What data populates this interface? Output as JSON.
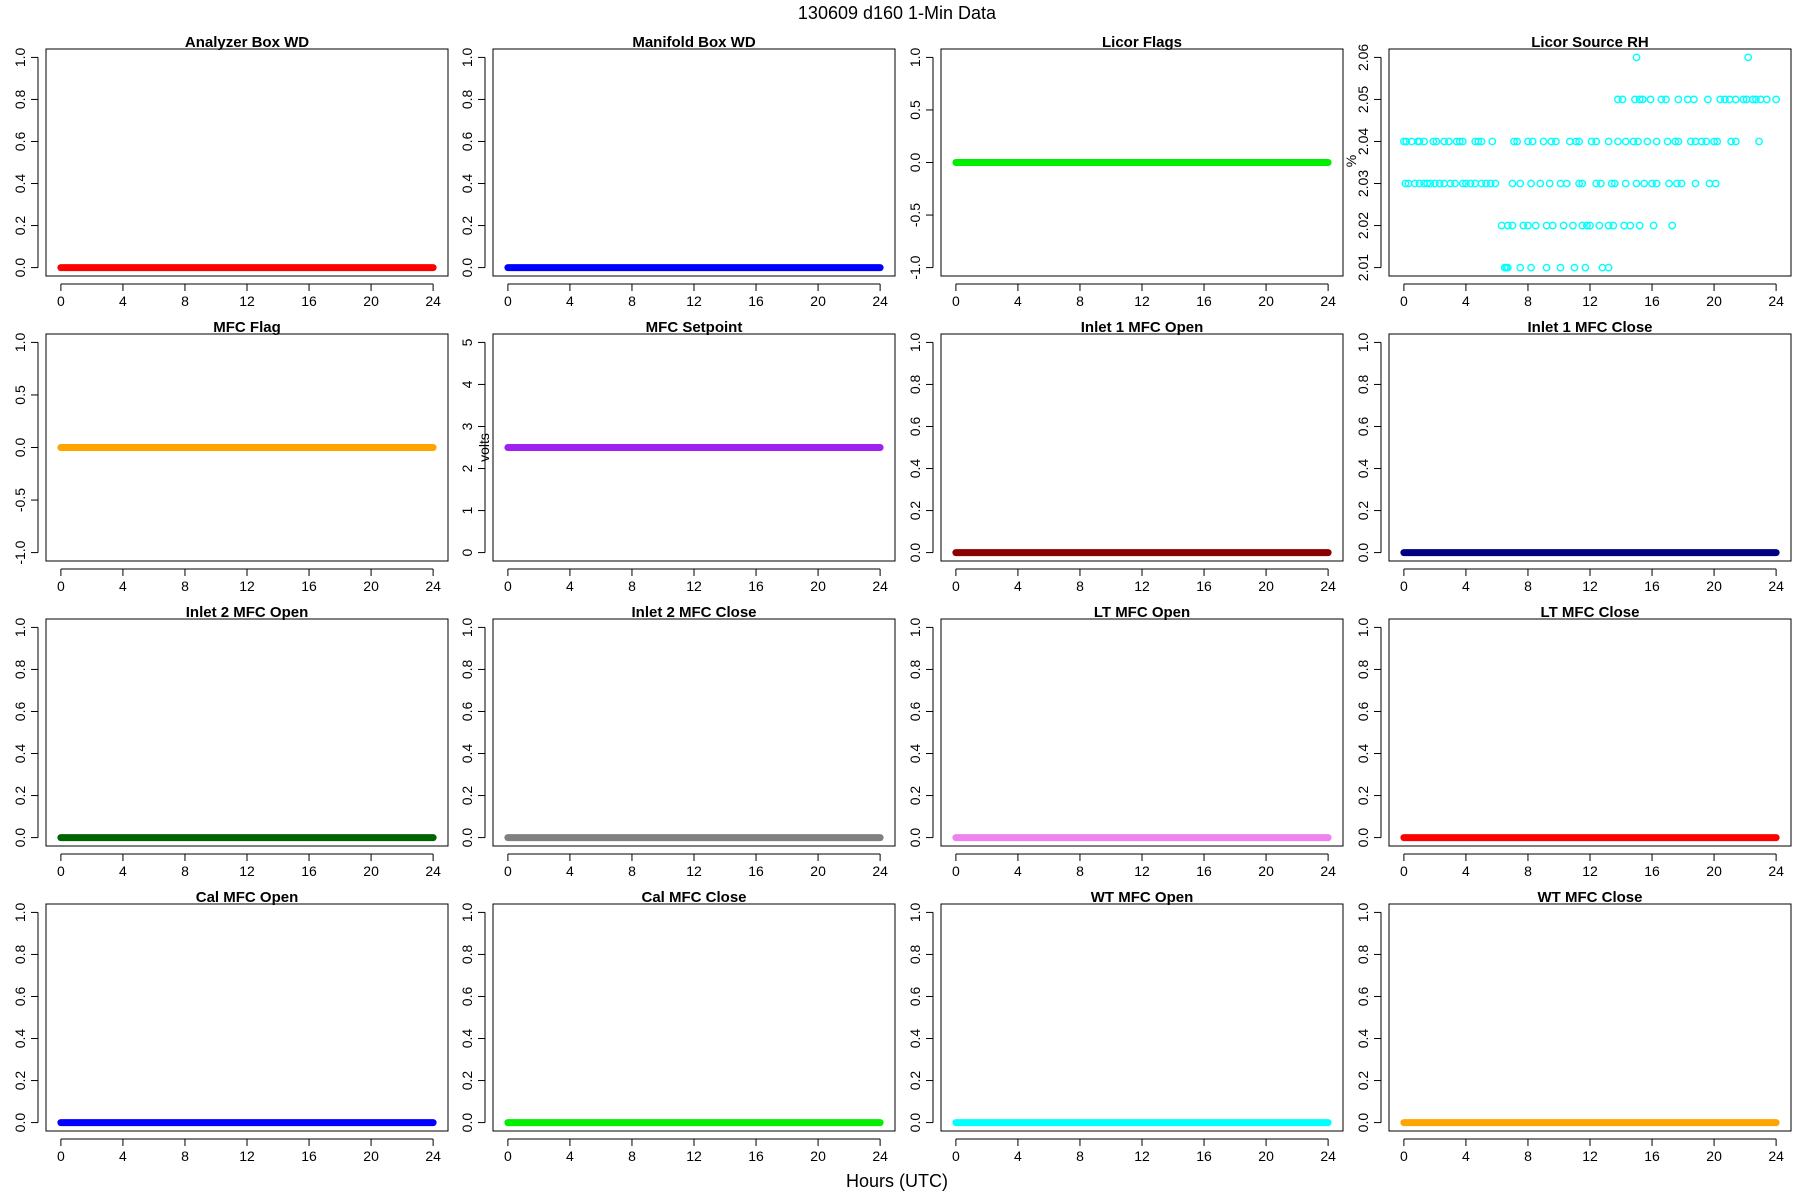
{
  "page": {
    "title": "130609   d160   1-Min Data",
    "xlabel": "Hours (UTC)"
  },
  "chart_data": [
    {
      "type": "scatter",
      "title": "Analyzer Box WD",
      "ylabel": "",
      "color": "#ff0000",
      "xlim": [
        0,
        24
      ],
      "xticks": [
        0,
        4,
        8,
        12,
        16,
        20,
        24
      ],
      "ylim": [
        0,
        1
      ],
      "yticks": [
        0.0,
        0.2,
        0.4,
        0.6,
        0.8,
        1.0
      ],
      "ytick_labels": [
        "0.0",
        "0.2",
        "0.4",
        "0.6",
        "0.8",
        "1.0"
      ],
      "marker": "filled",
      "series": [
        {
          "constant_y": 0,
          "x_range": [
            0,
            24
          ]
        }
      ]
    },
    {
      "type": "scatter",
      "title": "Manifold Box WD",
      "ylabel": "",
      "color": "#0000ff",
      "xlim": [
        0,
        24
      ],
      "xticks": [
        0,
        4,
        8,
        12,
        16,
        20,
        24
      ],
      "ylim": [
        0,
        1
      ],
      "yticks": [
        0.0,
        0.2,
        0.4,
        0.6,
        0.8,
        1.0
      ],
      "ytick_labels": [
        "0.0",
        "0.2",
        "0.4",
        "0.6",
        "0.8",
        "1.0"
      ],
      "marker": "filled",
      "series": [
        {
          "constant_y": 0,
          "x_range": [
            0,
            24
          ]
        }
      ]
    },
    {
      "type": "scatter",
      "title": "Licor Flags",
      "ylabel": "",
      "color": "#00ee00",
      "xlim": [
        0,
        24
      ],
      "xticks": [
        0,
        4,
        8,
        12,
        16,
        20,
        24
      ],
      "ylim": [
        -1,
        1
      ],
      "yticks": [
        -1.0,
        -0.5,
        0.0,
        0.5,
        1.0
      ],
      "ytick_labels": [
        "-1.0",
        "-0.5",
        "0.0",
        "0.5",
        "1.0"
      ],
      "marker": "filled",
      "series": [
        {
          "constant_y": 0,
          "x_range": [
            0,
            24
          ]
        }
      ]
    },
    {
      "type": "scatter",
      "title": "Licor Source RH",
      "ylabel": "%",
      "color": "#00ffff",
      "xlim": [
        0,
        24
      ],
      "xticks": [
        0,
        4,
        8,
        12,
        16,
        20,
        24
      ],
      "ylim": [
        2.01,
        2.06
      ],
      "yticks": [
        2.01,
        2.02,
        2.03,
        2.04,
        2.05,
        2.06
      ],
      "ytick_labels": [
        "2.01",
        "2.02",
        "2.03",
        "2.04",
        "2.05",
        "2.06"
      ],
      "marker": "open",
      "points": [
        [
          0,
          2.04
        ],
        [
          0.15,
          2.04
        ],
        [
          0.5,
          2.04
        ],
        [
          0.9,
          2.04
        ],
        [
          1.0,
          2.04
        ],
        [
          1.3,
          2.04
        ],
        [
          1.9,
          2.04
        ],
        [
          2.1,
          2.04
        ],
        [
          2.6,
          2.04
        ],
        [
          2.9,
          2.04
        ],
        [
          3.4,
          2.04
        ],
        [
          3.6,
          2.04
        ],
        [
          3.8,
          2.04
        ],
        [
          4.6,
          2.04
        ],
        [
          4.8,
          2.04
        ],
        [
          5.0,
          2.04
        ],
        [
          5.7,
          2.04
        ],
        [
          7.1,
          2.04
        ],
        [
          7.3,
          2.04
        ],
        [
          8.0,
          2.04
        ],
        [
          8.3,
          2.04
        ],
        [
          9.0,
          2.04
        ],
        [
          9.5,
          2.04
        ],
        [
          9.8,
          2.04
        ],
        [
          10.7,
          2.04
        ],
        [
          11.1,
          2.04
        ],
        [
          11.3,
          2.04
        ],
        [
          12.1,
          2.04
        ],
        [
          12.4,
          2.04
        ],
        [
          13.2,
          2.04
        ],
        [
          13.8,
          2.04
        ],
        [
          14.3,
          2.04
        ],
        [
          14.8,
          2.04
        ],
        [
          15.1,
          2.04
        ],
        [
          15.7,
          2.04
        ],
        [
          16.3,
          2.04
        ],
        [
          17.0,
          2.04
        ],
        [
          17.5,
          2.04
        ],
        [
          17.7,
          2.04
        ],
        [
          18.5,
          2.04
        ],
        [
          18.8,
          2.04
        ],
        [
          19.2,
          2.04
        ],
        [
          19.5,
          2.04
        ],
        [
          20.0,
          2.04
        ],
        [
          20.2,
          2.04
        ],
        [
          21.1,
          2.04
        ],
        [
          21.4,
          2.04
        ],
        [
          22.9,
          2.04
        ],
        [
          0.1,
          2.03
        ],
        [
          0.3,
          2.03
        ],
        [
          0.7,
          2.03
        ],
        [
          1.0,
          2.03
        ],
        [
          1.3,
          2.03
        ],
        [
          1.5,
          2.03
        ],
        [
          1.7,
          2.03
        ],
        [
          2.0,
          2.03
        ],
        [
          2.3,
          2.03
        ],
        [
          2.6,
          2.03
        ],
        [
          3.0,
          2.03
        ],
        [
          3.3,
          2.03
        ],
        [
          3.8,
          2.03
        ],
        [
          4.0,
          2.03
        ],
        [
          4.3,
          2.03
        ],
        [
          4.6,
          2.03
        ],
        [
          5.0,
          2.03
        ],
        [
          5.3,
          2.03
        ],
        [
          5.6,
          2.03
        ],
        [
          5.9,
          2.03
        ],
        [
          7.0,
          2.03
        ],
        [
          7.5,
          2.03
        ],
        [
          8.2,
          2.03
        ],
        [
          8.8,
          2.03
        ],
        [
          9.4,
          2.03
        ],
        [
          10.1,
          2.03
        ],
        [
          10.5,
          2.03
        ],
        [
          11.3,
          2.03
        ],
        [
          11.5,
          2.03
        ],
        [
          12.4,
          2.03
        ],
        [
          12.7,
          2.03
        ],
        [
          13.4,
          2.03
        ],
        [
          13.6,
          2.03
        ],
        [
          14.3,
          2.03
        ],
        [
          15.0,
          2.03
        ],
        [
          15.5,
          2.03
        ],
        [
          16.0,
          2.03
        ],
        [
          16.3,
          2.03
        ],
        [
          17.1,
          2.03
        ],
        [
          17.6,
          2.03
        ],
        [
          17.9,
          2.03
        ],
        [
          18.8,
          2.03
        ],
        [
          19.7,
          2.03
        ],
        [
          20.1,
          2.03
        ],
        [
          6.3,
          2.02
        ],
        [
          6.7,
          2.02
        ],
        [
          7.0,
          2.02
        ],
        [
          7.7,
          2.02
        ],
        [
          8.0,
          2.02
        ],
        [
          8.5,
          2.02
        ],
        [
          9.2,
          2.02
        ],
        [
          9.6,
          2.02
        ],
        [
          10.3,
          2.02
        ],
        [
          10.9,
          2.02
        ],
        [
          11.5,
          2.02
        ],
        [
          11.8,
          2.02
        ],
        [
          12.0,
          2.02
        ],
        [
          12.6,
          2.02
        ],
        [
          13.2,
          2.02
        ],
        [
          13.5,
          2.02
        ],
        [
          14.2,
          2.02
        ],
        [
          14.6,
          2.02
        ],
        [
          15.2,
          2.02
        ],
        [
          16.1,
          2.02
        ],
        [
          17.3,
          2.02
        ],
        [
          6.5,
          2.01
        ],
        [
          6.6,
          2.01
        ],
        [
          6.7,
          2.01
        ],
        [
          7.5,
          2.01
        ],
        [
          8.2,
          2.01
        ],
        [
          9.2,
          2.01
        ],
        [
          10.1,
          2.01
        ],
        [
          11.0,
          2.01
        ],
        [
          11.7,
          2.01
        ],
        [
          12.8,
          2.01
        ],
        [
          13.2,
          2.01
        ],
        [
          13.8,
          2.05
        ],
        [
          14.1,
          2.05
        ],
        [
          14.9,
          2.05
        ],
        [
          15.2,
          2.05
        ],
        [
          15.4,
          2.05
        ],
        [
          15.9,
          2.05
        ],
        [
          16.6,
          2.05
        ],
        [
          16.9,
          2.05
        ],
        [
          17.7,
          2.05
        ],
        [
          18.3,
          2.05
        ],
        [
          18.7,
          2.05
        ],
        [
          19.6,
          2.05
        ],
        [
          20.4,
          2.05
        ],
        [
          20.7,
          2.05
        ],
        [
          21.0,
          2.05
        ],
        [
          21.4,
          2.05
        ],
        [
          21.9,
          2.05
        ],
        [
          22.1,
          2.05
        ],
        [
          22.5,
          2.05
        ],
        [
          22.7,
          2.05
        ],
        [
          23.0,
          2.05
        ],
        [
          23.4,
          2.05
        ],
        [
          24.0,
          2.05
        ],
        [
          15.0,
          2.06
        ],
        [
          22.2,
          2.06
        ]
      ]
    },
    {
      "type": "scatter",
      "title": "MFC Flag",
      "ylabel": "",
      "color": "#ffa500",
      "xlim": [
        0,
        24
      ],
      "xticks": [
        0,
        4,
        8,
        12,
        16,
        20,
        24
      ],
      "ylim": [
        -1,
        1
      ],
      "yticks": [
        -1.0,
        -0.5,
        0.0,
        0.5,
        1.0
      ],
      "ytick_labels": [
        "-1.0",
        "-0.5",
        "0.0",
        "0.5",
        "1.0"
      ],
      "marker": "filled",
      "series": [
        {
          "constant_y": 0,
          "x_range": [
            0,
            24
          ]
        }
      ]
    },
    {
      "type": "scatter",
      "title": "MFC Setpoint",
      "ylabel": "volts",
      "color": "#a020f0",
      "xlim": [
        0,
        24
      ],
      "xticks": [
        0,
        4,
        8,
        12,
        16,
        20,
        24
      ],
      "ylim": [
        0,
        5
      ],
      "yticks": [
        0,
        1,
        2,
        3,
        4,
        5
      ],
      "ytick_labels": [
        "0",
        "1",
        "2",
        "3",
        "4",
        "5"
      ],
      "marker": "filled",
      "series": [
        {
          "constant_y": 2.5,
          "x_range": [
            0,
            24
          ]
        }
      ]
    },
    {
      "type": "scatter",
      "title": "Inlet 1 MFC Open",
      "ylabel": "",
      "color": "#8b0000",
      "xlim": [
        0,
        24
      ],
      "xticks": [
        0,
        4,
        8,
        12,
        16,
        20,
        24
      ],
      "ylim": [
        0,
        1
      ],
      "yticks": [
        0.0,
        0.2,
        0.4,
        0.6,
        0.8,
        1.0
      ],
      "ytick_labels": [
        "0.0",
        "0.2",
        "0.4",
        "0.6",
        "0.8",
        "1.0"
      ],
      "marker": "filled",
      "series": [
        {
          "constant_y": 0,
          "x_range": [
            0,
            24
          ]
        }
      ]
    },
    {
      "type": "scatter",
      "title": "Inlet 1 MFC Close",
      "ylabel": "",
      "color": "#000080",
      "xlim": [
        0,
        24
      ],
      "xticks": [
        0,
        4,
        8,
        12,
        16,
        20,
        24
      ],
      "ylim": [
        0,
        1
      ],
      "yticks": [
        0.0,
        0.2,
        0.4,
        0.6,
        0.8,
        1.0
      ],
      "ytick_labels": [
        "0.0",
        "0.2",
        "0.4",
        "0.6",
        "0.8",
        "1.0"
      ],
      "marker": "filled",
      "series": [
        {
          "constant_y": 0,
          "x_range": [
            0,
            24
          ]
        }
      ]
    },
    {
      "type": "scatter",
      "title": "Inlet 2 MFC Open",
      "ylabel": "",
      "color": "#006400",
      "xlim": [
        0,
        24
      ],
      "xticks": [
        0,
        4,
        8,
        12,
        16,
        20,
        24
      ],
      "ylim": [
        0,
        1
      ],
      "yticks": [
        0.0,
        0.2,
        0.4,
        0.6,
        0.8,
        1.0
      ],
      "ytick_labels": [
        "0.0",
        "0.2",
        "0.4",
        "0.6",
        "0.8",
        "1.0"
      ],
      "marker": "filled",
      "series": [
        {
          "constant_y": 0,
          "x_range": [
            0,
            24
          ]
        }
      ]
    },
    {
      "type": "scatter",
      "title": "Inlet 2 MFC Close",
      "ylabel": "",
      "color": "#808080",
      "xlim": [
        0,
        24
      ],
      "xticks": [
        0,
        4,
        8,
        12,
        16,
        20,
        24
      ],
      "ylim": [
        0,
        1
      ],
      "yticks": [
        0.0,
        0.2,
        0.4,
        0.6,
        0.8,
        1.0
      ],
      "ytick_labels": [
        "0.0",
        "0.2",
        "0.4",
        "0.6",
        "0.8",
        "1.0"
      ],
      "marker": "filled",
      "series": [
        {
          "constant_y": 0,
          "x_range": [
            0,
            24
          ]
        }
      ]
    },
    {
      "type": "scatter",
      "title": "LT MFC Open",
      "ylabel": "",
      "color": "#ee82ee",
      "xlim": [
        0,
        24
      ],
      "xticks": [
        0,
        4,
        8,
        12,
        16,
        20,
        24
      ],
      "ylim": [
        0,
        1
      ],
      "yticks": [
        0.0,
        0.2,
        0.4,
        0.6,
        0.8,
        1.0
      ],
      "ytick_labels": [
        "0.0",
        "0.2",
        "0.4",
        "0.6",
        "0.8",
        "1.0"
      ],
      "marker": "filled",
      "series": [
        {
          "constant_y": 0,
          "x_range": [
            0,
            24
          ]
        }
      ]
    },
    {
      "type": "scatter",
      "title": "LT MFC Close",
      "ylabel": "",
      "color": "#ff0000",
      "xlim": [
        0,
        24
      ],
      "xticks": [
        0,
        4,
        8,
        12,
        16,
        20,
        24
      ],
      "ylim": [
        0,
        1
      ],
      "yticks": [
        0.0,
        0.2,
        0.4,
        0.6,
        0.8,
        1.0
      ],
      "ytick_labels": [
        "0.0",
        "0.2",
        "0.4",
        "0.6",
        "0.8",
        "1.0"
      ],
      "marker": "filled",
      "series": [
        {
          "constant_y": 0,
          "x_range": [
            0,
            24
          ]
        }
      ]
    },
    {
      "type": "scatter",
      "title": "Cal MFC Open",
      "ylabel": "",
      "color": "#0000ff",
      "xlim": [
        0,
        24
      ],
      "xticks": [
        0,
        4,
        8,
        12,
        16,
        20,
        24
      ],
      "ylim": [
        0,
        1
      ],
      "yticks": [
        0.0,
        0.2,
        0.4,
        0.6,
        0.8,
        1.0
      ],
      "ytick_labels": [
        "0.0",
        "0.2",
        "0.4",
        "0.6",
        "0.8",
        "1.0"
      ],
      "marker": "filled",
      "series": [
        {
          "constant_y": 0,
          "x_range": [
            0,
            24
          ]
        }
      ]
    },
    {
      "type": "scatter",
      "title": "Cal MFC Close",
      "ylabel": "",
      "color": "#00ee00",
      "xlim": [
        0,
        24
      ],
      "xticks": [
        0,
        4,
        8,
        12,
        16,
        20,
        24
      ],
      "ylim": [
        0,
        1
      ],
      "yticks": [
        0.0,
        0.2,
        0.4,
        0.6,
        0.8,
        1.0
      ],
      "ytick_labels": [
        "0.0",
        "0.2",
        "0.4",
        "0.6",
        "0.8",
        "1.0"
      ],
      "marker": "filled",
      "series": [
        {
          "constant_y": 0,
          "x_range": [
            0,
            24
          ]
        }
      ]
    },
    {
      "type": "scatter",
      "title": "WT MFC Open",
      "ylabel": "",
      "color": "#00ffff",
      "xlim": [
        0,
        24
      ],
      "xticks": [
        0,
        4,
        8,
        12,
        16,
        20,
        24
      ],
      "ylim": [
        0,
        1
      ],
      "yticks": [
        0.0,
        0.2,
        0.4,
        0.6,
        0.8,
        1.0
      ],
      "ytick_labels": [
        "0.0",
        "0.2",
        "0.4",
        "0.6",
        "0.8",
        "1.0"
      ],
      "marker": "filled",
      "series": [
        {
          "constant_y": 0,
          "x_range": [
            0,
            24
          ]
        }
      ]
    },
    {
      "type": "scatter",
      "title": "WT MFC Close",
      "ylabel": "",
      "color": "#ffa500",
      "xlim": [
        0,
        24
      ],
      "xticks": [
        0,
        4,
        8,
        12,
        16,
        20,
        24
      ],
      "ylim": [
        0,
        1
      ],
      "yticks": [
        0.0,
        0.2,
        0.4,
        0.6,
        0.8,
        1.0
      ],
      "ytick_labels": [
        "0.0",
        "0.2",
        "0.4",
        "0.6",
        "0.8",
        "1.0"
      ],
      "marker": "filled",
      "series": [
        {
          "constant_y": 0,
          "x_range": [
            0,
            24
          ]
        }
      ]
    }
  ]
}
